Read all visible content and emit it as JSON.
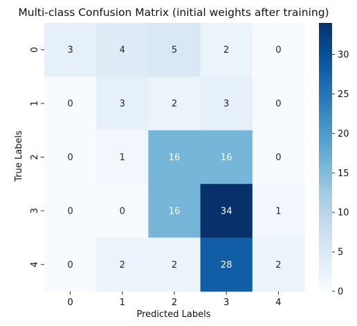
{
  "chart_data": {
    "type": "heatmap",
    "title": "Multi-class Confusion Matrix (initial weights after training)",
    "xlabel": "Predicted Labels",
    "ylabel": "True Labels",
    "x_categories": [
      "0",
      "1",
      "2",
      "3",
      "4"
    ],
    "y_categories": [
      "0",
      "1",
      "2",
      "3",
      "4"
    ],
    "values": [
      [
        3,
        4,
        5,
        2,
        0
      ],
      [
        0,
        3,
        2,
        3,
        0
      ],
      [
        0,
        1,
        16,
        16,
        0
      ],
      [
        0,
        0,
        16,
        34,
        1
      ],
      [
        0,
        2,
        2,
        28,
        2
      ]
    ],
    "colorscale": "Blues",
    "vmin": 0,
    "vmax": 34,
    "colorbar_ticks": [
      0,
      5,
      10,
      15,
      20,
      25,
      30
    ],
    "annotation_colors": {
      "light": "#ffffff",
      "dark": "#262626"
    }
  }
}
